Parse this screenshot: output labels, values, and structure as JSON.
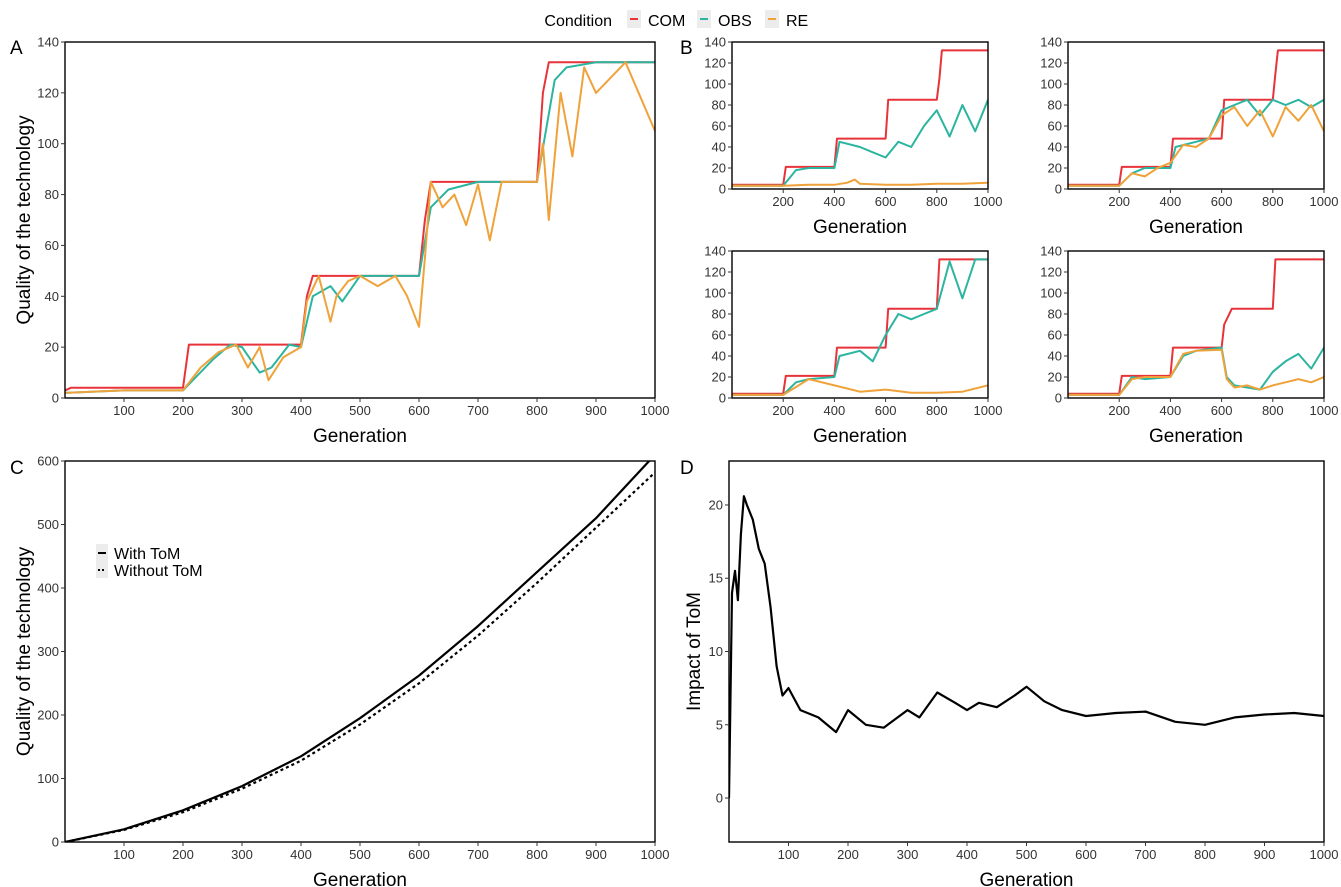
{
  "legend": {
    "title": "Condition",
    "items": [
      {
        "label": "COM",
        "color": "#e8333a"
      },
      {
        "label": "OBS",
        "color": "#2bb5a0"
      },
      {
        "label": "RE",
        "color": "#f0a23a"
      }
    ]
  },
  "panels": {
    "A": "A",
    "B": "B",
    "C": "C",
    "D": "D"
  },
  "chart_data": [
    {
      "id": "A",
      "type": "line",
      "xlabel": "Generation",
      "ylabel": "Quality of the technology",
      "xlim": [
        0,
        1000
      ],
      "ylim": [
        0,
        140
      ],
      "xticks": [
        100,
        200,
        300,
        400,
        500,
        600,
        700,
        800,
        900,
        1000
      ],
      "yticks": [
        0,
        20,
        40,
        60,
        80,
        100,
        120,
        140
      ],
      "series": [
        {
          "name": "COM",
          "x": [
            0,
            10,
            200,
            210,
            400,
            410,
            420,
            600,
            610,
            620,
            800,
            810,
            820,
            1000
          ],
          "y": [
            3,
            4,
            4,
            21,
            21,
            40,
            48,
            48,
            70,
            85,
            85,
            120,
            132,
            132
          ]
        },
        {
          "name": "OBS",
          "x": [
            0,
            100,
            200,
            250,
            280,
            300,
            330,
            350,
            380,
            400,
            420,
            450,
            470,
            500,
            550,
            600,
            620,
            650,
            700,
            750,
            800,
            830,
            850,
            900,
            1000
          ],
          "y": [
            2,
            3,
            3,
            15,
            21,
            20,
            10,
            12,
            21,
            20,
            40,
            44,
            38,
            48,
            48,
            48,
            75,
            82,
            85,
            85,
            85,
            125,
            130,
            132,
            132
          ]
        },
        {
          "name": "RE",
          "x": [
            0,
            100,
            200,
            230,
            260,
            290,
            310,
            330,
            345,
            370,
            400,
            410,
            430,
            450,
            460,
            480,
            500,
            530,
            560,
            580,
            600,
            610,
            620,
            640,
            660,
            680,
            700,
            720,
            740,
            760,
            800,
            810,
            820,
            840,
            860,
            880,
            900,
            950,
            1000
          ],
          "y": [
            2,
            3,
            3,
            12,
            18,
            21,
            12,
            20,
            7,
            16,
            20,
            38,
            48,
            30,
            40,
            46,
            48,
            44,
            48,
            40,
            28,
            55,
            85,
            75,
            80,
            68,
            84,
            62,
            85,
            85,
            85,
            100,
            70,
            120,
            95,
            130,
            120,
            132,
            105
          ]
        }
      ]
    },
    {
      "id": "B1",
      "type": "line",
      "xlabel": "Generation",
      "xlim": [
        0,
        1000
      ],
      "ylim": [
        0,
        140
      ],
      "xticks": [
        200,
        400,
        600,
        800,
        1000
      ],
      "yticks": [
        0,
        20,
        40,
        60,
        80,
        100,
        120,
        140
      ],
      "series": [
        {
          "name": "COM",
          "x": [
            0,
            200,
            210,
            400,
            410,
            600,
            610,
            800,
            810,
            820,
            1000
          ],
          "y": [
            4,
            4,
            21,
            21,
            48,
            48,
            85,
            85,
            105,
            132,
            132
          ]
        },
        {
          "name": "OBS",
          "x": [
            0,
            200,
            250,
            300,
            400,
            420,
            500,
            550,
            600,
            650,
            700,
            750,
            800,
            850,
            900,
            950,
            1000
          ],
          "y": [
            3,
            3,
            18,
            20,
            20,
            45,
            40,
            35,
            30,
            45,
            40,
            60,
            75,
            50,
            80,
            55,
            85
          ]
        },
        {
          "name": "RE",
          "x": [
            0,
            200,
            300,
            400,
            450,
            480,
            500,
            600,
            700,
            800,
            900,
            1000
          ],
          "y": [
            3,
            3,
            4,
            4,
            6,
            9,
            5,
            4,
            4,
            5,
            5,
            6
          ]
        }
      ]
    },
    {
      "id": "B2",
      "type": "line",
      "xlabel": "Generation",
      "xlim": [
        0,
        1000
      ],
      "ylim": [
        0,
        140
      ],
      "xticks": [
        200,
        400,
        600,
        800,
        1000
      ],
      "yticks": [
        0,
        20,
        40,
        60,
        80,
        100,
        120,
        140
      ],
      "series": [
        {
          "name": "COM",
          "x": [
            0,
            200,
            210,
            400,
            410,
            600,
            610,
            800,
            810,
            820,
            1000
          ],
          "y": [
            4,
            4,
            21,
            21,
            48,
            48,
            85,
            85,
            110,
            132,
            132
          ]
        },
        {
          "name": "OBS",
          "x": [
            0,
            200,
            250,
            300,
            400,
            420,
            500,
            550,
            600,
            650,
            700,
            750,
            800,
            850,
            900,
            950,
            1000
          ],
          "y": [
            3,
            3,
            15,
            20,
            20,
            40,
            45,
            48,
            75,
            80,
            85,
            70,
            85,
            80,
            85,
            78,
            85
          ]
        },
        {
          "name": "RE",
          "x": [
            0,
            200,
            250,
            300,
            350,
            400,
            450,
            500,
            550,
            600,
            650,
            700,
            750,
            800,
            850,
            900,
            950,
            1000
          ],
          "y": [
            3,
            3,
            15,
            12,
            20,
            25,
            42,
            40,
            48,
            70,
            78,
            60,
            75,
            50,
            78,
            65,
            80,
            55
          ]
        }
      ]
    },
    {
      "id": "B3",
      "type": "line",
      "xlabel": "Generation",
      "xlim": [
        0,
        1000
      ],
      "ylim": [
        0,
        140
      ],
      "xticks": [
        200,
        400,
        600,
        800,
        1000
      ],
      "yticks": [
        0,
        20,
        40,
        60,
        80,
        100,
        120,
        140
      ],
      "series": [
        {
          "name": "COM",
          "x": [
            0,
            200,
            210,
            400,
            410,
            600,
            610,
            800,
            810,
            1000
          ],
          "y": [
            4,
            4,
            21,
            21,
            48,
            48,
            85,
            85,
            132,
            132
          ]
        },
        {
          "name": "OBS",
          "x": [
            0,
            200,
            250,
            300,
            400,
            420,
            500,
            550,
            600,
            650,
            700,
            750,
            800,
            850,
            900,
            950,
            1000
          ],
          "y": [
            3,
            3,
            15,
            18,
            20,
            40,
            45,
            35,
            60,
            80,
            75,
            80,
            85,
            130,
            95,
            132,
            132
          ]
        },
        {
          "name": "RE",
          "x": [
            0,
            200,
            300,
            400,
            500,
            600,
            700,
            800,
            900,
            1000
          ],
          "y": [
            3,
            3,
            18,
            12,
            6,
            8,
            5,
            5,
            6,
            12
          ]
        }
      ]
    },
    {
      "id": "B4",
      "type": "line",
      "xlabel": "Generation",
      "xlim": [
        0,
        1000
      ],
      "ylim": [
        0,
        140
      ],
      "xticks": [
        200,
        400,
        600,
        800,
        1000
      ],
      "yticks": [
        0,
        20,
        40,
        60,
        80,
        100,
        120,
        140
      ],
      "series": [
        {
          "name": "COM",
          "x": [
            0,
            200,
            210,
            400,
            410,
            600,
            610,
            640,
            800,
            810,
            1000
          ],
          "y": [
            4,
            4,
            21,
            21,
            48,
            48,
            70,
            85,
            85,
            132,
            132
          ]
        },
        {
          "name": "OBS",
          "x": [
            0,
            200,
            250,
            300,
            400,
            450,
            500,
            600,
            620,
            650,
            700,
            750,
            800,
            850,
            900,
            950,
            1000
          ],
          "y": [
            3,
            3,
            20,
            18,
            20,
            40,
            45,
            48,
            20,
            12,
            10,
            8,
            25,
            35,
            42,
            28,
            48
          ]
        },
        {
          "name": "RE",
          "x": [
            0,
            200,
            250,
            300,
            400,
            450,
            500,
            600,
            620,
            650,
            700,
            750,
            800,
            850,
            900,
            950,
            1000
          ],
          "y": [
            3,
            3,
            18,
            20,
            20,
            42,
            45,
            46,
            18,
            10,
            12,
            8,
            12,
            15,
            18,
            15,
            20
          ]
        }
      ]
    },
    {
      "id": "C",
      "type": "line",
      "xlabel": "Generation",
      "ylabel": "Quality of the technology",
      "xlim": [
        0,
        1000
      ],
      "ylim": [
        0,
        600
      ],
      "xticks": [
        100,
        200,
        300,
        400,
        500,
        600,
        700,
        800,
        900,
        1000
      ],
      "yticks": [
        0,
        100,
        200,
        300,
        400,
        500,
        600
      ],
      "legend": [
        "With ToM",
        "Without ToM"
      ],
      "series": [
        {
          "name": "With ToM",
          "x": [
            0,
            100,
            200,
            300,
            400,
            500,
            600,
            700,
            800,
            900,
            1000
          ],
          "y": [
            0,
            20,
            50,
            88,
            135,
            195,
            262,
            340,
            425,
            510,
            610
          ]
        },
        {
          "name": "Without ToM",
          "x": [
            0,
            100,
            200,
            300,
            400,
            500,
            600,
            700,
            800,
            900,
            1000
          ],
          "y": [
            0,
            19,
            47,
            84,
            128,
            185,
            250,
            325,
            408,
            495,
            582
          ]
        }
      ]
    },
    {
      "id": "D",
      "type": "line",
      "xlabel": "Generation",
      "ylabel": "Impact of ToM",
      "xlim": [
        0,
        1000
      ],
      "ylim": [
        -3,
        23
      ],
      "xticks": [
        100,
        200,
        300,
        400,
        500,
        600,
        700,
        800,
        900,
        1000
      ],
      "yticks": [
        0,
        5,
        10,
        15,
        20
      ],
      "series": [
        {
          "name": "Impact of ToM",
          "x": [
            0,
            5,
            10,
            15,
            20,
            25,
            30,
            40,
            50,
            60,
            70,
            80,
            90,
            100,
            120,
            150,
            180,
            200,
            230,
            260,
            300,
            320,
            350,
            380,
            400,
            420,
            450,
            480,
            500,
            530,
            560,
            600,
            650,
            700,
            750,
            800,
            850,
            900,
            950,
            1000
          ],
          "y": [
            0,
            14,
            15.5,
            13.5,
            18,
            20.6,
            20,
            19,
            17,
            16,
            13,
            9,
            7,
            7.5,
            6,
            5.5,
            4.5,
            6,
            5,
            4.8,
            6,
            5.5,
            7.2,
            6.5,
            6,
            6.5,
            6.2,
            7,
            7.6,
            6.6,
            6,
            5.6,
            5.8,
            5.9,
            5.2,
            5,
            5.5,
            5.7,
            5.8,
            5.6
          ]
        }
      ]
    }
  ]
}
